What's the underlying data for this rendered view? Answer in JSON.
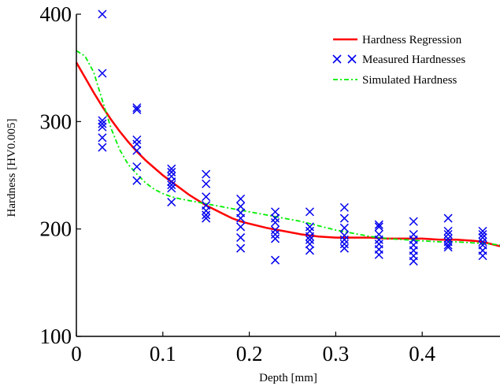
{
  "chart_data": {
    "type": "line",
    "title": "",
    "xlabel": "Depth [mm]",
    "ylabel": "Hardness [HV0.005]",
    "xlim": [
      0,
      0.49
    ],
    "ylim": [
      100,
      400
    ],
    "x_ticks": [
      {
        "value": 0,
        "label": "0"
      },
      {
        "value": 0.1,
        "label": "0.1"
      },
      {
        "value": 0.2,
        "label": "0.2"
      },
      {
        "value": 0.3,
        "label": "0.3"
      },
      {
        "value": 0.4,
        "label": "0.4"
      }
    ],
    "y_ticks": [
      {
        "value": 100,
        "label": "100"
      },
      {
        "value": 200,
        "label": "200"
      },
      {
        "value": 300,
        "label": "300"
      },
      {
        "value": 400,
        "label": "400"
      }
    ],
    "grid": false,
    "legend_position": "top-right",
    "series": [
      {
        "name": "Hardness Regression",
        "kind": "line",
        "style": "solid",
        "color": "#ff0000",
        "x": [
          0,
          0.01,
          0.02,
          0.03,
          0.04,
          0.05,
          0.06,
          0.07,
          0.08,
          0.09,
          0.1,
          0.11,
          0.12,
          0.13,
          0.14,
          0.15,
          0.16,
          0.17,
          0.18,
          0.19,
          0.2,
          0.22,
          0.24,
          0.26,
          0.28,
          0.3,
          0.32,
          0.34,
          0.36,
          0.38,
          0.4,
          0.42,
          0.44,
          0.46,
          0.47,
          0.48,
          0.49
        ],
        "y": [
          355,
          341,
          327,
          314,
          302,
          291,
          281,
          272,
          264,
          257,
          250,
          244,
          238,
          232,
          227,
          222,
          218,
          214,
          210,
          207,
          205,
          201,
          198,
          195,
          193,
          192,
          192,
          192,
          191,
          191,
          191,
          190,
          190,
          189,
          188,
          186,
          184
        ]
      },
      {
        "name": "Simulated Hardness",
        "kind": "line",
        "style": "dash-dot",
        "color": "#00ee00",
        "x": [
          0,
          0.01,
          0.02,
          0.03,
          0.04,
          0.05,
          0.06,
          0.07,
          0.08,
          0.09,
          0.1,
          0.11,
          0.12,
          0.14,
          0.16,
          0.18,
          0.2,
          0.22,
          0.24,
          0.26,
          0.28,
          0.3,
          0.32,
          0.34,
          0.36,
          0.38,
          0.4,
          0.42,
          0.44,
          0.46,
          0.48,
          0.49
        ],
        "y": [
          366,
          361,
          346,
          320,
          294,
          274,
          260,
          251,
          243,
          237,
          233,
          230,
          228,
          225,
          222,
          219,
          216,
          213,
          210,
          207,
          203,
          199,
          196,
          193,
          191,
          190,
          189,
          188,
          188,
          187,
          186,
          185
        ]
      },
      {
        "name": "Measured Hardnesses",
        "kind": "scatter",
        "marker": "x",
        "color": "#0000ee",
        "points": [
          [
            0.03,
            400
          ],
          [
            0.03,
            345
          ],
          [
            0.03,
            301
          ],
          [
            0.03,
            298
          ],
          [
            0.03,
            295
          ],
          [
            0.03,
            285
          ],
          [
            0.03,
            276
          ],
          [
            0.07,
            313
          ],
          [
            0.07,
            311
          ],
          [
            0.07,
            283
          ],
          [
            0.07,
            279
          ],
          [
            0.07,
            273
          ],
          [
            0.07,
            258
          ],
          [
            0.07,
            245
          ],
          [
            0.11,
            256
          ],
          [
            0.11,
            253
          ],
          [
            0.11,
            249
          ],
          [
            0.11,
            244
          ],
          [
            0.11,
            241
          ],
          [
            0.11,
            238
          ],
          [
            0.11,
            225
          ],
          [
            0.15,
            251
          ],
          [
            0.15,
            242
          ],
          [
            0.15,
            230
          ],
          [
            0.15,
            222
          ],
          [
            0.15,
            217
          ],
          [
            0.15,
            213
          ],
          [
            0.15,
            210
          ],
          [
            0.19,
            228
          ],
          [
            0.19,
            221
          ],
          [
            0.19,
            215
          ],
          [
            0.19,
            210
          ],
          [
            0.19,
            202
          ],
          [
            0.19,
            192
          ],
          [
            0.19,
            182
          ],
          [
            0.23,
            216
          ],
          [
            0.23,
            210
          ],
          [
            0.23,
            206
          ],
          [
            0.23,
            199
          ],
          [
            0.23,
            195
          ],
          [
            0.23,
            191
          ],
          [
            0.23,
            171
          ],
          [
            0.27,
            216
          ],
          [
            0.27,
            202
          ],
          [
            0.27,
            198
          ],
          [
            0.27,
            193
          ],
          [
            0.27,
            190
          ],
          [
            0.27,
            186
          ],
          [
            0.27,
            180
          ],
          [
            0.31,
            220
          ],
          [
            0.31,
            210
          ],
          [
            0.31,
            201
          ],
          [
            0.31,
            194
          ],
          [
            0.31,
            190
          ],
          [
            0.31,
            186
          ],
          [
            0.31,
            182
          ],
          [
            0.35,
            204
          ],
          [
            0.35,
            202
          ],
          [
            0.35,
            195
          ],
          [
            0.35,
            190
          ],
          [
            0.35,
            186
          ],
          [
            0.35,
            181
          ],
          [
            0.35,
            176
          ],
          [
            0.39,
            207
          ],
          [
            0.39,
            195
          ],
          [
            0.39,
            190
          ],
          [
            0.39,
            185
          ],
          [
            0.39,
            180
          ],
          [
            0.39,
            175
          ],
          [
            0.39,
            170
          ],
          [
            0.43,
            210
          ],
          [
            0.43,
            198
          ],
          [
            0.43,
            195
          ],
          [
            0.43,
            191
          ],
          [
            0.43,
            188
          ],
          [
            0.43,
            185
          ],
          [
            0.43,
            183
          ],
          [
            0.47,
            198
          ],
          [
            0.47,
            195
          ],
          [
            0.47,
            192
          ],
          [
            0.47,
            188
          ],
          [
            0.47,
            185
          ],
          [
            0.47,
            180
          ],
          [
            0.47,
            175
          ]
        ]
      }
    ],
    "legend": [
      {
        "label": "Hardness Regression",
        "symbol": "solid-line",
        "color": "#ff0000"
      },
      {
        "label": "Measured Hardnesses",
        "symbol": "x-markers",
        "color": "#0000ee"
      },
      {
        "label": "Simulated Hardness",
        "symbol": "dash-dot-line",
        "color": "#00ee00"
      }
    ]
  }
}
